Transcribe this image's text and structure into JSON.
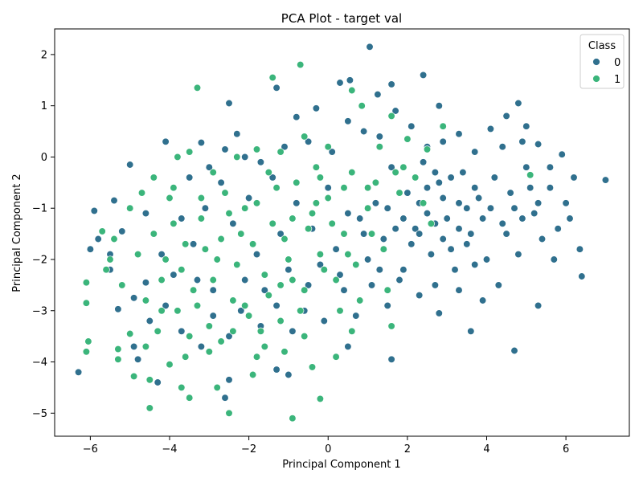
{
  "chart_data": {
    "type": "scatter",
    "title": "PCA Plot - target val",
    "xlabel": "Principal Component 1",
    "ylabel": "Principal Component 2",
    "xlim": [
      -6.9,
      7.6
    ],
    "ylim": [
      -5.45,
      2.5
    ],
    "xticks": [
      -6,
      -4,
      -2,
      0,
      2,
      4,
      6
    ],
    "yticks": [
      -5,
      -4,
      -3,
      -2,
      -1,
      0,
      1,
      2
    ],
    "grid": false,
    "legend": {
      "title": "Class",
      "placement": "top-right"
    },
    "series": [
      {
        "name": "0",
        "color": "#30708e",
        "points": [
          [
            -6.3,
            -4.2
          ],
          [
            -5.9,
            -1.05
          ],
          [
            -5.8,
            -1.6
          ],
          [
            -5.4,
            -0.85
          ],
          [
            -5.0,
            -0.15
          ],
          [
            -4.6,
            -1.1
          ],
          [
            -4.1,
            0.3
          ],
          [
            -3.2,
            0.28
          ],
          [
            -2.5,
            1.05
          ],
          [
            -2.3,
            0.45
          ],
          [
            -1.3,
            1.35
          ],
          [
            -0.8,
            0.78
          ],
          [
            -0.3,
            0.95
          ],
          [
            0.3,
            1.45
          ],
          [
            0.55,
            1.5
          ],
          [
            1.05,
            2.15
          ],
          [
            1.25,
            1.22
          ],
          [
            1.6,
            1.42
          ],
          [
            2.4,
            1.6
          ],
          [
            2.8,
            1.0
          ],
          [
            4.5,
            0.8
          ],
          [
            4.8,
            1.05
          ],
          [
            5.0,
            0.6
          ],
          [
            5.9,
            0.05
          ],
          [
            6.2,
            -0.4
          ],
          [
            7.0,
            -0.45
          ],
          [
            6.35,
            -1.8
          ],
          [
            6.4,
            -2.33
          ],
          [
            5.3,
            -2.9
          ],
          [
            4.7,
            -3.78
          ],
          [
            3.6,
            -3.4
          ],
          [
            2.8,
            -3.05
          ],
          [
            1.6,
            -3.95
          ],
          [
            0.5,
            -3.7
          ],
          [
            -1.0,
            -4.25
          ],
          [
            -1.3,
            -4.15
          ],
          [
            -2.5,
            -4.35
          ],
          [
            -2.6,
            -4.7
          ],
          [
            -3.2,
            -3.7
          ],
          [
            -4.3,
            -4.4
          ],
          [
            -4.8,
            -3.95
          ],
          [
            -5.3,
            -2.97
          ],
          [
            -5.5,
            -2.2
          ],
          [
            -6.0,
            -1.8
          ],
          [
            -5.5,
            -1.9
          ],
          [
            -5.2,
            -1.45
          ],
          [
            -4.9,
            -2.75
          ],
          [
            -4.6,
            -2.45
          ],
          [
            -4.2,
            -1.9
          ],
          [
            -3.9,
            -2.3
          ],
          [
            -3.7,
            -1.2
          ],
          [
            -3.4,
            -1.7
          ],
          [
            -3.1,
            -1.0
          ],
          [
            -2.9,
            -2.6
          ],
          [
            -2.7,
            -0.5
          ],
          [
            -2.4,
            -1.3
          ],
          [
            -2.2,
            -3.0
          ],
          [
            -2.0,
            -0.8
          ],
          [
            -1.8,
            -1.9
          ],
          [
            -1.6,
            -2.6
          ],
          [
            -1.4,
            -0.4
          ],
          [
            -1.2,
            -1.5
          ],
          [
            -1.0,
            -2.2
          ],
          [
            -0.8,
            -0.9
          ],
          [
            -0.6,
            -3.0
          ],
          [
            -0.4,
            -1.4
          ],
          [
            -0.2,
            -2.1
          ],
          [
            0.0,
            -0.6
          ],
          [
            0.2,
            -1.8
          ],
          [
            0.4,
            -2.6
          ],
          [
            0.6,
            -0.3
          ],
          [
            0.8,
            -1.2
          ],
          [
            1.0,
            -2.0
          ],
          [
            1.2,
            -0.9
          ],
          [
            1.4,
            -1.6
          ],
          [
            1.6,
            -0.2
          ],
          [
            1.8,
            -2.4
          ],
          [
            2.0,
            -0.7
          ],
          [
            2.2,
            -1.4
          ],
          [
            2.4,
            -0.1
          ],
          [
            2.6,
            -1.9
          ],
          [
            2.8,
            -0.5
          ],
          [
            3.0,
            -1.2
          ],
          [
            3.2,
            -2.2
          ],
          [
            3.4,
            -0.3
          ],
          [
            3.6,
            -1.5
          ],
          [
            3.8,
            -0.8
          ],
          [
            4.0,
            -2.0
          ],
          [
            4.2,
            -0.4
          ],
          [
            4.4,
            -1.3
          ],
          [
            4.6,
            -0.7
          ],
          [
            4.8,
            -1.9
          ],
          [
            5.0,
            -0.2
          ],
          [
            5.2,
            -1.1
          ],
          [
            5.4,
            -1.6
          ],
          [
            5.6,
            -0.6
          ],
          [
            5.8,
            -1.4
          ],
          [
            6.0,
            -0.9
          ],
          [
            6.1,
            -1.2
          ],
          [
            5.7,
            -2.0
          ],
          [
            4.3,
            -2.5
          ],
          [
            3.9,
            -2.8
          ],
          [
            3.3,
            -2.6
          ],
          [
            2.7,
            -2.5
          ],
          [
            2.3,
            -2.7
          ],
          [
            1.9,
            -2.2
          ],
          [
            1.5,
            -2.9
          ],
          [
            1.1,
            -2.5
          ],
          [
            0.7,
            -3.1
          ],
          [
            0.3,
            -2.3
          ],
          [
            -0.1,
            -3.2
          ],
          [
            -0.5,
            -2.5
          ],
          [
            -0.9,
            -3.4
          ],
          [
            -1.3,
            -2.9
          ],
          [
            -1.7,
            -3.3
          ],
          [
            -2.1,
            -2.4
          ],
          [
            -2.5,
            -3.5
          ],
          [
            -2.9,
            -3.1
          ],
          [
            -3.3,
            -2.4
          ],
          [
            -3.7,
            -3.4
          ],
          [
            -4.1,
            -2.9
          ],
          [
            -4.5,
            -3.2
          ],
          [
            -4.9,
            -3.7
          ],
          [
            -3.5,
            -0.4
          ],
          [
            -3.0,
            -0.2
          ],
          [
            -2.6,
            0.15
          ],
          [
            -2.1,
            0.0
          ],
          [
            -1.7,
            -0.1
          ],
          [
            -1.1,
            0.2
          ],
          [
            -0.5,
            0.3
          ],
          [
            0.1,
            0.1
          ],
          [
            0.5,
            0.7
          ],
          [
            0.9,
            0.5
          ],
          [
            1.3,
            0.4
          ],
          [
            1.7,
            0.9
          ],
          [
            2.1,
            0.6
          ],
          [
            2.5,
            0.2
          ],
          [
            2.9,
            0.3
          ],
          [
            3.3,
            0.45
          ],
          [
            3.7,
            0.1
          ],
          [
            4.1,
            0.55
          ],
          [
            4.4,
            0.2
          ],
          [
            4.9,
            0.3
          ],
          [
            5.3,
            0.25
          ],
          [
            5.6,
            -0.2
          ],
          [
            2.3,
            -0.9
          ],
          [
            2.5,
            -1.1
          ],
          [
            2.7,
            -0.3
          ],
          [
            2.9,
            -0.8
          ],
          [
            3.1,
            -0.4
          ],
          [
            3.3,
            -0.9
          ],
          [
            3.5,
            -1.0
          ],
          [
            3.7,
            -0.6
          ],
          [
            3.9,
            -1.2
          ],
          [
            4.1,
            -1.0
          ],
          [
            1.9,
            -1.2
          ],
          [
            2.1,
            -1.7
          ],
          [
            2.3,
            -1.5
          ],
          [
            2.5,
            -0.6
          ],
          [
            2.7,
            -1.3
          ],
          [
            2.9,
            -1.6
          ],
          [
            3.1,
            -1.8
          ],
          [
            3.3,
            -1.4
          ],
          [
            3.5,
            -1.7
          ],
          [
            3.7,
            -2.1
          ],
          [
            1.5,
            -1.0
          ],
          [
            1.7,
            -1.4
          ],
          [
            1.3,
            -2.2
          ],
          [
            0.9,
            -1.5
          ],
          [
            0.5,
            -1.1
          ],
          [
            4.5,
            -1.5
          ],
          [
            4.7,
            -1.0
          ],
          [
            4.9,
            -1.2
          ],
          [
            5.1,
            -0.6
          ],
          [
            5.3,
            -0.9
          ]
        ]
      },
      {
        "name": "1",
        "color": "#3bb57b",
        "points": [
          [
            -6.1,
            -2.45
          ],
          [
            -6.1,
            -2.85
          ],
          [
            -6.05,
            -3.6
          ],
          [
            -6.1,
            -3.8
          ],
          [
            -5.7,
            -1.45
          ],
          [
            -5.5,
            -2.0
          ],
          [
            -5.3,
            -3.75
          ],
          [
            -5.3,
            -3.95
          ],
          [
            -5.0,
            -3.45
          ],
          [
            -4.9,
            -4.28
          ],
          [
            -4.5,
            -4.35
          ],
          [
            -4.5,
            -4.9
          ],
          [
            -4.0,
            -4.05
          ],
          [
            -3.7,
            -4.5
          ],
          [
            -3.5,
            -4.7
          ],
          [
            -2.8,
            -4.5
          ],
          [
            -2.5,
            -5.0
          ],
          [
            -1.9,
            -4.25
          ],
          [
            -0.9,
            -5.1
          ],
          [
            -0.2,
            -4.72
          ],
          [
            -3.3,
            1.35
          ],
          [
            -1.4,
            1.55
          ],
          [
            -0.7,
            1.8
          ],
          [
            0.6,
            1.3
          ],
          [
            0.85,
            1.0
          ],
          [
            1.6,
            0.8
          ],
          [
            2.9,
            0.6
          ],
          [
            2.5,
            0.15
          ],
          [
            1.9,
            -0.2
          ],
          [
            5.1,
            -0.35
          ],
          [
            1.6,
            -3.3
          ],
          [
            -1.1,
            -3.8
          ],
          [
            -1.6,
            -3.7
          ],
          [
            -0.4,
            -4.1
          ],
          [
            0.6,
            -3.4
          ],
          [
            -5.0,
            -1.0
          ],
          [
            -4.8,
            -1.9
          ],
          [
            -4.6,
            -2.8
          ],
          [
            -4.4,
            -1.5
          ],
          [
            -4.2,
            -2.4
          ],
          [
            -4.0,
            -0.8
          ],
          [
            -3.8,
            -3.0
          ],
          [
            -3.6,
            -1.7
          ],
          [
            -3.4,
            -2.6
          ],
          [
            -3.2,
            -1.2
          ],
          [
            -3.0,
            -3.3
          ],
          [
            -2.8,
            -2.0
          ],
          [
            -2.6,
            -0.7
          ],
          [
            -2.4,
            -2.8
          ],
          [
            -2.2,
            -1.5
          ],
          [
            -2.0,
            -3.1
          ],
          [
            -1.8,
            -0.9
          ],
          [
            -1.6,
            -2.3
          ],
          [
            -1.4,
            -1.3
          ],
          [
            -1.2,
            -3.2
          ],
          [
            -1.0,
            -2.0
          ],
          [
            -0.8,
            -0.5
          ],
          [
            -0.6,
            -2.6
          ],
          [
            -0.4,
            -1.1
          ],
          [
            -0.2,
            -1.9
          ],
          [
            0.0,
            -0.8
          ],
          [
            0.2,
            -2.4
          ],
          [
            0.4,
            -1.5
          ],
          [
            0.6,
            -0.3
          ],
          [
            0.8,
            -2.8
          ],
          [
            1.0,
            -1.0
          ],
          [
            1.2,
            -0.5
          ],
          [
            1.4,
            -1.8
          ],
          [
            1.8,
            -0.7
          ],
          [
            2.2,
            -0.4
          ],
          [
            -4.3,
            -3.4
          ],
          [
            -4.1,
            -2.0
          ],
          [
            -3.9,
            -1.3
          ],
          [
            -3.7,
            -2.2
          ],
          [
            -3.5,
            -3.5
          ],
          [
            -3.3,
            -2.9
          ],
          [
            -3.1,
            -1.8
          ],
          [
            -2.9,
            -2.4
          ],
          [
            -2.7,
            -3.6
          ],
          [
            -2.5,
            -1.1
          ],
          [
            -2.3,
            -2.1
          ],
          [
            -2.1,
            -2.9
          ],
          [
            -1.9,
            -1.7
          ],
          [
            -1.7,
            -3.4
          ],
          [
            -1.5,
            -2.7
          ],
          [
            -1.3,
            -0.6
          ],
          [
            -1.1,
            -1.6
          ],
          [
            -0.9,
            -2.4
          ],
          [
            -0.7,
            -3.0
          ],
          [
            -0.5,
            -1.4
          ],
          [
            -0.3,
            -0.2
          ],
          [
            -0.1,
            -2.2
          ],
          [
            0.1,
            -1.3
          ],
          [
            0.3,
            -3.0
          ],
          [
            0.5,
            -1.9
          ],
          [
            -3.8,
            0.0
          ],
          [
            -3.5,
            0.1
          ],
          [
            -2.9,
            -0.3
          ],
          [
            -2.3,
            0.0
          ],
          [
            -1.8,
            0.15
          ],
          [
            -1.2,
            0.1
          ],
          [
            -0.6,
            0.4
          ],
          [
            0.0,
            0.2
          ],
          [
            1.3,
            0.2
          ],
          [
            2.0,
            0.35
          ],
          [
            -4.6,
            -3.7
          ],
          [
            -4.2,
            -3.0
          ],
          [
            -3.6,
            -3.9
          ],
          [
            -3.0,
            -3.8
          ],
          [
            -2.4,
            -3.4
          ],
          [
            -1.8,
            -3.9
          ],
          [
            -1.2,
            -2.5
          ],
          [
            -0.6,
            -3.5
          ],
          [
            0.2,
            -3.9
          ],
          [
            -5.2,
            -2.5
          ],
          [
            -5.6,
            -2.2
          ],
          [
            -5.4,
            -1.6
          ],
          [
            -4.7,
            -0.7
          ],
          [
            -4.4,
            -0.4
          ],
          [
            -3.9,
            -0.6
          ],
          [
            -3.2,
            -0.8
          ],
          [
            -2.7,
            -1.6
          ],
          [
            -2.1,
            -1.0
          ],
          [
            -1.5,
            -0.3
          ],
          [
            -0.9,
            -1.2
          ],
          [
            -0.3,
            -0.9
          ],
          [
            0.7,
            -2.1
          ],
          [
            1.1,
            -1.5
          ],
          [
            1.5,
            -2.6
          ],
          [
            1.7,
            -0.3
          ],
          [
            2.4,
            -0.9
          ],
          [
            2.6,
            -1.3
          ],
          [
            1.0,
            -0.6
          ],
          [
            0.4,
            -0.6
          ],
          [
            -0.2,
            -0.4
          ]
        ]
      }
    ]
  }
}
